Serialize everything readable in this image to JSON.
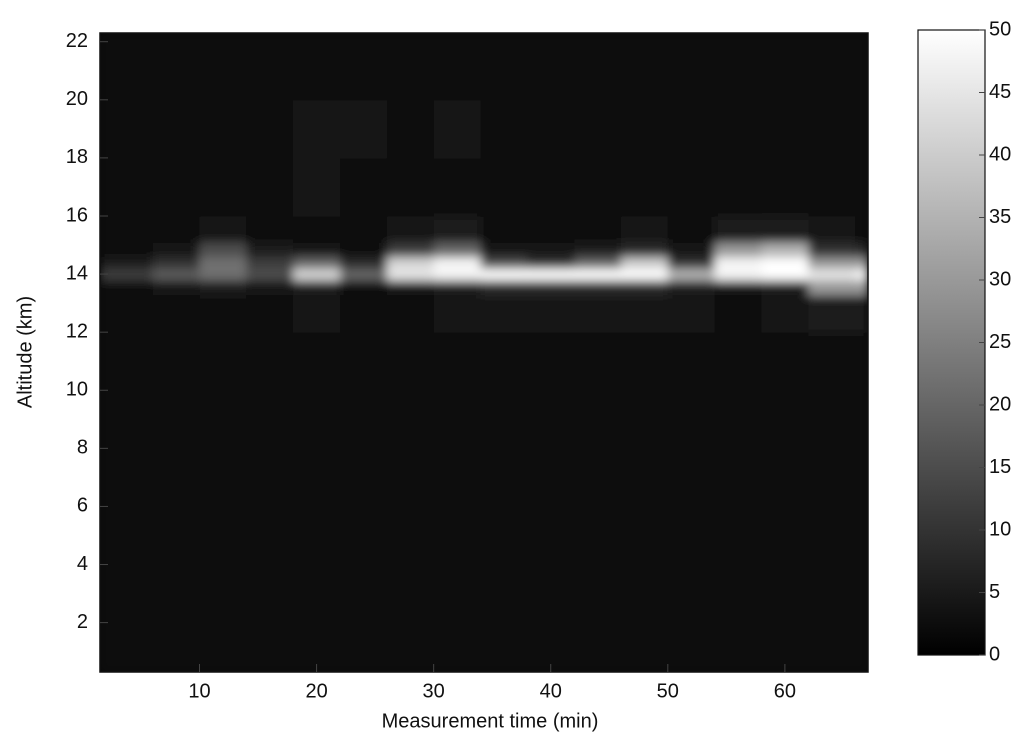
{
  "chart_data": {
    "type": "heatmap",
    "xlabel": "Measurement time (min)",
    "ylabel": "Altitude (km)",
    "xlim": [
      1.5,
      67.1
    ],
    "ylim": [
      0.3,
      22.3
    ],
    "xticks": [
      10,
      20,
      30,
      40,
      50,
      60
    ],
    "yticks": [
      2,
      4,
      6,
      8,
      10,
      12,
      14,
      16,
      18,
      20,
      22
    ],
    "xbins": [
      1.5,
      6,
      10,
      14,
      18,
      22,
      26,
      30,
      34,
      38,
      42,
      46,
      50,
      54,
      58,
      62,
      66,
      67.1
    ],
    "ybins": [
      0.3,
      2,
      4,
      6,
      8,
      10,
      12,
      13.3,
      13.8,
      14.2,
      14.6,
      15.1,
      16,
      18,
      20,
      22.3
    ],
    "z": [
      [
        2,
        2,
        3,
        2,
        2,
        3,
        2,
        2,
        3,
        2,
        2,
        3,
        2,
        2,
        3,
        2,
        2
      ],
      [
        2,
        3,
        2,
        2,
        3,
        2,
        2,
        3,
        2,
        2,
        3,
        2,
        2,
        3,
        2,
        2,
        3
      ],
      [
        3,
        2,
        2,
        3,
        2,
        2,
        3,
        2,
        2,
        3,
        2,
        2,
        3,
        2,
        2,
        3,
        2
      ],
      [
        2,
        3,
        2,
        2,
        2,
        3,
        2,
        2,
        3,
        2,
        2,
        3,
        2,
        2,
        2,
        3,
        2
      ],
      [
        3,
        3,
        2,
        3,
        2,
        2,
        3,
        3,
        2,
        3,
        2,
        2,
        3,
        2,
        3,
        2,
        2
      ],
      [
        3,
        3,
        3,
        3,
        3,
        3,
        3,
        3,
        3,
        3,
        3,
        3,
        3,
        3,
        3,
        3,
        3
      ],
      [
        3,
        3,
        3,
        3,
        4,
        3,
        3,
        4,
        4,
        4,
        4,
        4,
        4,
        3,
        4,
        5,
        5
      ],
      [
        3,
        4,
        5,
        4,
        5,
        3,
        4,
        5,
        8,
        8,
        8,
        8,
        5,
        4,
        6,
        30,
        30
      ],
      [
        12,
        18,
        22,
        15,
        42,
        20,
        45,
        48,
        50,
        50,
        50,
        50,
        35,
        48,
        50,
        45,
        48
      ],
      [
        5,
        10,
        22,
        12,
        20,
        8,
        42,
        48,
        15,
        10,
        20,
        40,
        10,
        48,
        50,
        30,
        30
      ],
      [
        3,
        4,
        15,
        6,
        4,
        3,
        12,
        20,
        4,
        4,
        5,
        8,
        4,
        30,
        35,
        10,
        8
      ],
      [
        3,
        3,
        4,
        3,
        3,
        3,
        4,
        5,
        3,
        3,
        3,
        4,
        3,
        5,
        6,
        4,
        3
      ],
      [
        3,
        3,
        3,
        3,
        4,
        3,
        3,
        3,
        3,
        3,
        3,
        3,
        3,
        3,
        3,
        3,
        3
      ],
      [
        3,
        3,
        3,
        3,
        4,
        4,
        3,
        4,
        3,
        3,
        3,
        3,
        3,
        3,
        3,
        3,
        3
      ],
      [
        3,
        3,
        3,
        3,
        3,
        3,
        3,
        3,
        3,
        3,
        3,
        3,
        3,
        3,
        3,
        3,
        3
      ]
    ],
    "clim": [
      0,
      50
    ],
    "cticks": [
      0,
      5,
      10,
      15,
      20,
      25,
      30,
      35,
      40,
      45,
      50
    ],
    "colormap": [
      "#000000",
      "#ffffff"
    ]
  }
}
